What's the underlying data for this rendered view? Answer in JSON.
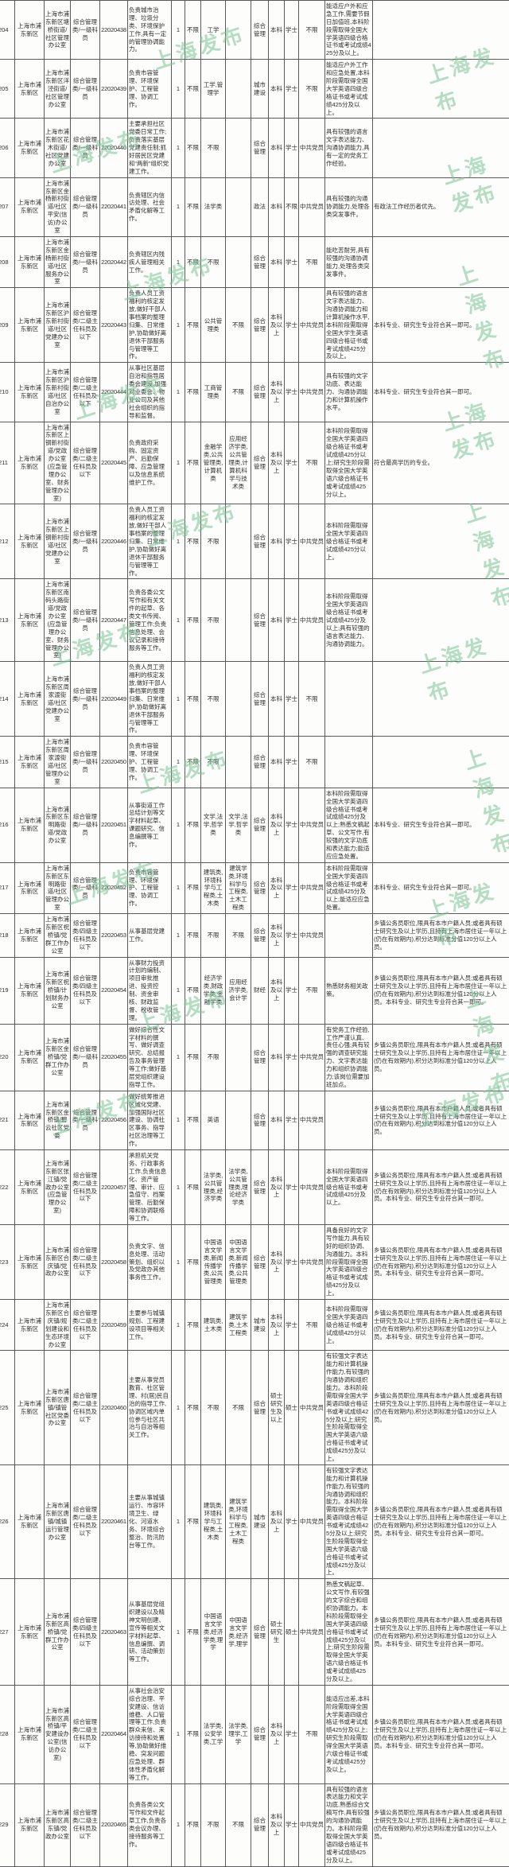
{
  "watermark": {
    "text": "上海发布"
  },
  "table": {
    "field_order": [
      "num",
      "district",
      "org",
      "position",
      "code",
      "duties",
      "count",
      "hukou",
      "major_ug",
      "major_pg",
      "category",
      "education",
      "degree",
      "political",
      "other",
      "remarks"
    ],
    "rows": [
      {
        "num": "204",
        "district": "上海市浦东新区",
        "org": "上海市浦东新区塘桥街道/社区管理办公室",
        "position": "综合管理类/一级科员",
        "code": "22020438",
        "duties": "负责城市治理、垃圾分类、环境保护工作,具有一定的管理协调能力。",
        "count": "1",
        "hukou": "不限",
        "major_ug": "工学",
        "major_pg": "",
        "category": "综合管理",
        "education": "本科",
        "degree": "学士",
        "political": "不限",
        "other": "能适应户外和应急工作,需要节假日加值班,本科阶段需取得全国大学英语四级合格证书或考试成绩425分及以上。",
        "remarks": ""
      },
      {
        "num": "205",
        "district": "上海市浦东新区",
        "org": "上海市浦东新区洋泾街道/社区管理办公室",
        "position": "综合管理类/一级科员",
        "code": "22020439",
        "duties": "负责市容管理、环境保护、工程管理、协调工作。",
        "count": "1",
        "hukou": "不限",
        "major_ug": "工学,管理学",
        "major_pg": "",
        "category": "城市建设",
        "education": "本科",
        "degree": "学士",
        "political": "不限",
        "other": "能适应户外工作和应急处置,本科阶段需取得全国大学英语四级合格证书或考试成绩425分及以上。",
        "remarks": ""
      },
      {
        "num": "206",
        "district": "上海市浦东新区",
        "org": "上海市浦东新区花木街道/社区党建办公室",
        "position": "综合管理类/一级科员",
        "code": "22020440",
        "duties": "主要承担社区党委日常工作;负责落实基层党建责任制;抓好居民区党建和“两新”组织党建工作。",
        "count": "1",
        "hukou": "不限",
        "major_ug": "不限",
        "major_pg": "",
        "category": "综合管理",
        "education": "本科",
        "degree": "学士",
        "political": "中共党员",
        "other": "具有较强的语言文字表达能力、沟通协调能力,具有一定的党务工作经验。",
        "remarks": ""
      },
      {
        "num": "207",
        "district": "上海市浦东新区",
        "org": "上海市浦东新区金杨新村街道/社区平安(信访)办公室",
        "position": "综合管理类/一级科员",
        "code": "22020441",
        "duties": "负责辖区内信访处理、社会矛盾化解等工作。",
        "count": "1",
        "hukou": "不限",
        "major_ug": "法学类",
        "major_pg": "",
        "category": "政法",
        "education": "本科",
        "degree": "不限",
        "political": "中共党员",
        "other": "具有较强的沟通协调能力,处理各类突发事件。",
        "remarks": "有政法工作经历者优先。"
      },
      {
        "num": "208",
        "district": "上海市浦东新区",
        "org": "上海市浦东新区金杨新村街道/社区服务办公室",
        "position": "综合管理类/一级科员",
        "code": "22020442",
        "duties": "负责辖区内残疾人管理相关工作。",
        "count": "1",
        "hukou": "不限",
        "major_ug": "不限",
        "major_pg": "",
        "category": "综合管理",
        "education": "本科",
        "degree": "学士",
        "political": "不限",
        "other": "能吃苦耐劳,具有较强的沟通协调能力,处理各类突发事件。",
        "remarks": ""
      },
      {
        "num": "209",
        "district": "上海市浦东新区",
        "org": "上海市浦东新区沪东新村街道/社区党建办公室",
        "position": "综合管理类/二级主任科员及以下",
        "code": "22020443",
        "duties": "负责人员工资福利的核定发放,做好干部人事档案的整理归集、日常维护,协助做好离退休干部服务与管理等工作。",
        "count": "1",
        "hukou": "不限",
        "major_ug": "公共管理类",
        "major_pg": "不限",
        "category": "综合管理",
        "education": "本科及以上",
        "degree": "学士",
        "political": "中共党员",
        "other": "具有较强的语言文字表达能力、沟通协调能力和计算机操作水平,本科阶段需取得全国大学生英语四级合格证书或考试成绩425分及以上。",
        "remarks": "本科专业、研究生专业符合其一即可。"
      },
      {
        "num": "210",
        "district": "上海市浦东新区",
        "org": "上海市浦东新区沪东新村街道/社区自治办公室",
        "position": "综合管理类/二级主任科员及以下",
        "code": "22020444",
        "duties": "从事社区基层自治和指导居委会建设,加强对业委会、物业公司及其他社会组织的指导和监督。",
        "count": "1",
        "hukou": "不限",
        "major_ug": "工商管理类",
        "major_pg": "不限",
        "category": "综合管理",
        "education": "本科及以上",
        "degree": "学士",
        "political": "中共党员",
        "other": "具有较强的文字功底、表达能力、沟通协调能力和计算机操作水平。",
        "remarks": "本科专业、研究生专业符合其一即可。"
      },
      {
        "num": "211",
        "district": "上海市浦东新区",
        "org": "上海市浦东新区上钢新村街道/党政办公室(应急管理办公室、财务管理办公室)",
        "position": "综合管理类/二级主任科员及以下",
        "code": "22020445",
        "duties": "负责政府采购、固定资产、后勤保障、应急管理以及信息系统维护工作。",
        "count": "1",
        "hukou": "不限",
        "major_ug": "金融学类,公共管理类,计算机类",
        "major_pg": "应用经济学类,公共管理类,计算机科学与技术类",
        "category": "综合管理",
        "education": "本科及以上",
        "degree": "学士",
        "political": "不限",
        "other": "本科阶段需取得全国大学英语四级合格证书或考试成绩425分以上;研究生阶段需取得全国大学英语六级合格证书或考试成绩425分以上。",
        "remarks": "符合最高学历的专业。"
      },
      {
        "num": "212",
        "district": "上海市浦东新区",
        "org": "上海市浦东新区上钢新村街道/社区党建办公室",
        "position": "综合管理类/一级科员",
        "code": "22020446",
        "duties": "负责人员工资福利的核定发放,做好干部人事档案的整理归集、日常维护,协助做好离退休干部服务与管理等工作。",
        "count": "1",
        "hukou": "不限",
        "major_ug": "不限",
        "major_pg": "",
        "category": "综合管理",
        "education": "本科",
        "degree": "学士",
        "political": "中共党员",
        "other": "本科阶段需取得全国大学英语四级合格证书或考试成绩425分以上。",
        "remarks": ""
      },
      {
        "num": "213",
        "district": "上海市浦东新区",
        "org": "上海市浦东新区南码头路街道/党政办公室(应急管理办公室、财务管理办公室)",
        "position": "综合管理类/一级科员",
        "code": "22020447",
        "duties": "负责各委公文写作和有关文件的起草、各类文书传阅、管理工作;负责信息处理、会议记录和接待服务等工作。",
        "count": "1",
        "hukou": "不限",
        "major_ug": "不限",
        "major_pg": "",
        "category": "综合管理",
        "education": "本科",
        "degree": "学士",
        "political": "中共党员",
        "other": "本科阶段需取得全国大学英语四级合格证书或考试成绩425分及以上;具有较强的语言表达能力、沟通协调能力。",
        "remarks": ""
      },
      {
        "num": "214",
        "district": "上海市浦东新区",
        "org": "上海市浦东新区周家渡街道/社区党建办公室",
        "position": "综合管理类/一级科员",
        "code": "22020449",
        "duties": "负责人员工资福利的核定发放,做好干部人事档案的整理归集、日常维护,协助做好离退休干部服务与管理等工作。",
        "count": "1",
        "hukou": "不限",
        "major_ug": "不限",
        "major_pg": "",
        "category": "综合管理",
        "education": "本科",
        "degree": "学士",
        "political": "不限",
        "other": "",
        "remarks": ""
      },
      {
        "num": "215",
        "district": "上海市浦东新区",
        "org": "上海市浦东新区周家渡街道/社区管理办公室",
        "position": "综合管理类/一级科员",
        "code": "22020450",
        "duties": "负责市容管理、环境保护、工程管理、协调工作。",
        "count": "1",
        "hukou": "不限",
        "major_ug": "不限",
        "major_pg": "",
        "category": "综合管理",
        "education": "本科",
        "degree": "学士",
        "political": "不限",
        "other": "",
        "remarks": ""
      },
      {
        "num": "216",
        "district": "上海市浦东新区",
        "org": "上海市浦东新区东明路街道/党政办公室",
        "position": "综合管理类/一级科员",
        "code": "22020451",
        "duties": "从事街道工作总结计划等文字材料起草、课题研究、信息编撰等工作。",
        "count": "1",
        "hukou": "不限",
        "major_ug": "文学,法学,哲学类",
        "major_pg": "文学,法学,哲学类",
        "category": "综合管理",
        "education": "本科及以上",
        "degree": "学士",
        "political": "中共党员",
        "other": "本科阶段需取得全国大学英语四级合格证书或考试成绩425分及以上;熟悉文稿起草、公文写作,有较强的文字功底和表达能力;能适应应急处置。",
        "remarks": "本科专业、研究生专业符合其一即可。"
      },
      {
        "num": "217",
        "district": "上海市浦东新区",
        "org": "上海市浦东新区东明路街道/社区管理办公室",
        "position": "综合管理类/一级科员",
        "code": "22020452",
        "duties": "负责市容管理、环境保护、工程管理、协调工作。",
        "count": "1",
        "hukou": "不限",
        "major_ug": "建筑类,环境科学与工程类,土木类",
        "major_pg": "建筑学类,环境科学与工程类,土木工程类",
        "category": "综合管理",
        "education": "本科及以上",
        "degree": "学士",
        "political": "中共党员",
        "other": "本科阶段需取得全国大学英语四级合格证书或考试成绩425分及以上;能适应应急处置。",
        "remarks": "本科专业、研究生专业符合其一即可。"
      },
      {
        "num": "218",
        "district": "上海市浦东新区",
        "org": "上海市浦东新区祝桥镇/党群工作办公室",
        "position": "综合管理类/四级主任科员及以下",
        "code": "22020453",
        "duties": "从事基层党建工作。",
        "count": "1",
        "hukou": "不限",
        "major_ug": "不限",
        "major_pg": "不限",
        "category": "综合管理",
        "education": "本科及以上",
        "degree": "学士",
        "political": "中共党员",
        "other": "",
        "remarks": "乡镇公务员职位,限具有本市户籍人员;或者具有硕士研究生及以上学历,且持有上海市居住证一年以上(仍在有效期内),积分达到标准分值120分以上人员。"
      },
      {
        "num": "219",
        "district": "上海市浦东新区",
        "org": "上海市浦东新区祝桥镇/计划财务办公室",
        "position": "综合管理类/四级主任科员及以下",
        "code": "22020454",
        "duties": "从事财力投资计划的编制、项目审批推进、投资控制、资金审核、财政监督、税收管理。",
        "count": "1",
        "hukou": "不限",
        "major_ug": "经济学类,财政学类,金融学类",
        "major_pg": "应用经济学类,会计学",
        "category": "财经",
        "education": "本科及以上",
        "degree": "学士",
        "political": "不限",
        "other": "熟悉财务相关政策。",
        "remarks": "乡镇公务员职位,限具有本市户籍人员;或者具有硕士研究生及以上学历,且持有上海市居住证一年以上(仍在有效期内),积分达到标准分值120分以上人员。本科专业、研究生专业符合其一即可。"
      },
      {
        "num": "220",
        "district": "上海市浦东新区",
        "org": "上海市浦东新区金桥镇/党群工作办公室",
        "position": "综合管理类/一级科员",
        "code": "22020455",
        "duties": "做好综合性文字材料的撰写、做好调查研究、总结报告及事务管理等工作;做好基层党组织建设指导工作。",
        "count": "1",
        "hukou": "不限",
        "major_ug": "不限",
        "major_pg": "",
        "category": "综合管理",
        "education": "本科",
        "degree": "学士",
        "political": "中共党员",
        "other": "有党务工作经验,工作严谨认真、责任心强;具有较强的调查研究能力、文字表达能力和组织协调能力;该岗位需要加班加点。",
        "remarks": "乡镇公务员职位,限具有本市户籍人员;或者具有硕士研究生及以上学历,且持有上海市居住证一年以上(仍在有效期内),积分达到标准分值120分以上人员。"
      },
      {
        "num": "221",
        "district": "上海市浦东新区",
        "org": "上海市浦东新区金桥镇/碧云社区党委",
        "position": "综合管理类/一级科员",
        "code": "22020456",
        "duties": "做好统筹推进区域化党建、加强国际社区建设、协调社区事务、指导社区治理等工作。",
        "count": "1",
        "hukou": "不限",
        "major_ug": "英语",
        "major_pg": "",
        "category": "综合管理",
        "education": "本科",
        "degree": "学士",
        "political": "中共党员",
        "other": "",
        "remarks": "乡镇公务员职位,限具有本市户籍人员;或者具有硕士研究生及以上学历,且持有上海市居住证一年以上(仍在有效期内),积分达到标准分值120分以上人员。"
      },
      {
        "num": "222",
        "district": "上海市浦东新区",
        "org": "上海市浦东新区张江镇/党政办公室(应急管理办公室)",
        "position": "综合管理类/二级主任科员及以下",
        "code": "22020457",
        "duties": "承担机关党务、行政事务工作,负责信息化、资产管理、审计、应急值守、档案管理、后勤保障和协调联络等工作。",
        "count": "1",
        "hukou": "不限",
        "major_ug": "法学类,公共管理类,经济学类",
        "major_pg": "法学类,公共管理类,理论经济学类",
        "category": "综合管理",
        "education": "本科及以上",
        "degree": "学士",
        "political": "中共党员",
        "other": "本科阶段需取得全国大学英语四级合格证书或考试成绩425分及以上。",
        "remarks": "乡镇公务员职位,限具有本市户籍人员;或者具有硕士研究生及以上学历,且持有上海市居住证一年以上(仍在有效期内),积分达到标准分值120分以上人员。本科专业、研究生专业符合其一即可。"
      },
      {
        "num": "223",
        "district": "上海市浦东新区",
        "org": "上海市浦东新区合庆镇/党政办公室",
        "position": "综合管理类/二级主任科员及以下",
        "code": "22020458",
        "duties": "负责文字、信息处理、活动策划、组织以及党政办其他事务性工作。",
        "count": "1",
        "hukou": "不限",
        "major_ug": "中国语言文学类,新闻传播学类,公共管理类",
        "major_pg": "中国语言文学类,新闻传播学类,公共管理类",
        "category": "综合管理",
        "education": "本科及以上",
        "degree": "学士",
        "political": "中共党员",
        "other": "具备良好的文字写作能力,具有较好的组织协调、沟通能力。本科阶段需取得全国大学英语四级合格证书或考试成绩425分及以上。",
        "remarks": "乡镇公务员职位,限具有本市户籍人员;或者具有硕士研究生及以上学历,且持有上海市居住证一年以上(仍在有效期内),积分达到标准分值120分以上人员。本科专业、研究生专业符合其一即可。"
      },
      {
        "num": "224",
        "district": "上海市浦东新区",
        "org": "上海市浦东新区合庆镇/规划建设和生态环境办公室",
        "position": "综合管理类/二级主任科员及以下",
        "code": "22020459",
        "duties": "主要参与城镇规划、工程建设项目等相关工作。",
        "count": "1",
        "hukou": "不限",
        "major_ug": "建筑类,土木类",
        "major_pg": "建筑学类,土木工程类",
        "category": "城市建设",
        "education": "本科及以上",
        "degree": "学士",
        "political": "不限",
        "other": "本科阶段需取得全国大学英语四级合格证书或考试成绩425分以上。",
        "remarks": "乡镇公务员职位,限具有本市户籍人员;或者具有硕士研究生及以上学历,且持有上海市居住证一年以上(仍在有效期内),积分达到标准分值120分以上人员。本科专业、研究生专业符合其一即可。"
      },
      {
        "num": "225",
        "district": "上海市浦东新区",
        "org": "上海市浦东新区唐镇/镇管社区党委办公室",
        "position": "综合管理类/二级主任科员及以下",
        "code": "22020460",
        "duties": "主要从事党员教育、社区管理、村(居)民自治的指导工作,协调区域内单位参与社区共治与自治等相关工作。",
        "count": "1",
        "hukou": "不限",
        "major_ug": "不限",
        "major_pg": "不限",
        "category": "综合管理",
        "education": "硕士研究生及以上",
        "degree": "硕士",
        "political": "中共党员",
        "other": "有较强文字表达能力和计算机操作能力,有较强的沟通协调和组织能力。本科阶段需取得全国大学英语四级合格证书或考试成绩425分及以上;研究生阶段需取得全国大学英语六级合格证书或考试成绩425分及以上。",
        "remarks": "乡镇公务员职位,限具有本市户籍人员;或者具有硕士研究生及以上学历,且持有上海市居住证一年以上(仍在有效期内),积分达到标准分值120分以上人员。"
      },
      {
        "num": "226",
        "district": "上海市浦东新区",
        "org": "上海市浦东新区唐镇/城镇运行管理办公室",
        "position": "综合管理类/二级主任科员及以下",
        "code": "22020461",
        "duties": "主要从事城镇运行、市容环境卫生、绿化、河道水务、环境综合整治、防汛防台等工作。",
        "count": "1",
        "hukou": "不限",
        "major_ug": "建筑类,环境科学与工程类,土木类",
        "major_pg": "建筑学类,环境科学与工程类,土木工程类",
        "category": "城市建设",
        "education": "本科及以上",
        "degree": "学士",
        "political": "中共党员",
        "other": "有较强文字表达能力和计算机操作能力,有较强的沟通协调和组织能力。本科阶段需取得全国大学英语四级合格证书或考试成绩425分及以上;研究生阶段需取得全国大学英语六级合格证书或考试成绩425分及以上。",
        "remarks": "乡镇公务员职位,限具有本市户籍人员;或者具有硕士研究生及以上学历,且持有上海市居住证一年以上(仍在有效期内),积分达到标准分值120分以上人员。本科专业、研究生专业符合其一即可。"
      },
      {
        "num": "227",
        "district": "上海市浦东新区",
        "org": "上海市浦东新区高桥镇/党群工作办公室",
        "position": "综合管理类/四级主任科员及以下",
        "code": "22020463",
        "duties": "从事基层党组织建设以及精神文明创建、宣传等相关文字材料起草、信息编撰、调研、活动策划等工作。",
        "count": "1",
        "hukou": "不限",
        "major_ug": "中国语言文学类,经济学类,理学",
        "major_pg": "中国语言文学类,经济学,理学",
        "category": "综合管理",
        "education": "硕士研究生",
        "degree": "硕士",
        "political": "中共党员",
        "other": "熟悉文稿起草、公文写作,有较强的文字综合和组织协调能力。本科阶段需取得全国大学英语四级合格证书或考试成绩425分及以上;研究生阶段需取得全国大学英语六级合格证书或考试成绩425分及以上。",
        "remarks": "乡镇公务员职位,限具有本市户籍人员;或者具有硕士研究生及以上学历,且持有上海市居住证一年以上(仍在有效期内),积分达到标准分值120分以上人员。本科专业、研究生专业符合其一即可。"
      },
      {
        "num": "228",
        "district": "上海市浦东新区",
        "org": "上海市浦东新区高桥镇/平安建设办公室(信访办公室)",
        "position": "综合管理类/二级主任科员及以下",
        "code": "22020464",
        "duties": "从事社会治安综合治理、平安建设、信访维稳、人口管理等工作,负责群众来信、来访接待和处置等,协助做好维稳、突发问题应急处理、群体性矛盾化解等工作。",
        "count": "1",
        "hukou": "不限",
        "major_ug": "法学类,公安学类,工学",
        "major_pg": "法学类,理学,工学",
        "category": "综合管理",
        "education": "本科及以上",
        "degree": "学士",
        "political": "不限",
        "other": "能适应出差,本科阶段需取得全国大学英语四级合格证书或考试成绩425分及以上;研究生阶段需取得全国大学英语六级合格证书或考试成绩425分及以上。",
        "remarks": "乡镇公务员职位,限具有本市户籍人员;或者具有硕士研究生及以上学历,且持有上海市居住证一年以上(仍在有效期内),积分达到标准分值120分以上人员。本科专业、研究生专业符合其一即可。"
      },
      {
        "num": "229",
        "district": "上海市浦东新区",
        "org": "上海市浦东新区高东镇/党政办公室",
        "position": "综合管理类/二级主任科员及以下",
        "code": "22020465",
        "duties": "负责各类公文写作和文件起草工作,负责各类会议办理、接待服务等工作。",
        "count": "1",
        "hukou": "不限",
        "major_ug": "不限",
        "major_pg": "不限",
        "category": "综合管理",
        "education": "本科及以上",
        "degree": "学士",
        "political": "中共党员",
        "other": "具有较强的语言表达能力和文字功底,熟悉综合文稿写作,具有较强的沟通协调能力。本科阶段需取得全国大学英语四级合格证书或考试成绩425分及以上。",
        "remarks": "乡镇公务员职位,限具有本市户籍人员;或者具有硕士研究生及以上学历,且持有上海市居住证一年以上(仍在有效期内),积分达到标准分值120分以上人员。"
      }
    ]
  }
}
